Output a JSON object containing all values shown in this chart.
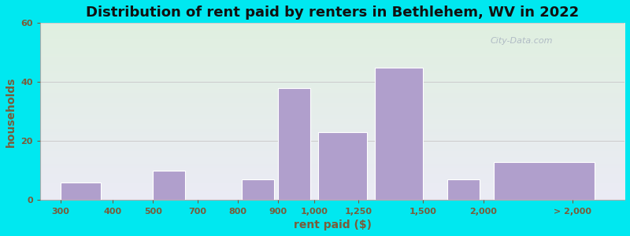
{
  "title": "Distribution of rent paid by renters in Bethlehem, WV in 2022",
  "xlabel": "rent paid ($)",
  "ylabel": "households",
  "bar_color": "#b09fcc",
  "bar_edgecolor": "#ffffff",
  "ylim": [
    0,
    60
  ],
  "yticks": [
    0,
    20,
    40,
    60
  ],
  "categories": [
    "300",
    "400",
    "500",
    "700",
    "800",
    "9001,000",
    "1,250",
    "1,500",
    "2,000",
    "> 2,000"
  ],
  "bar_positions": [
    1.0,
    2.2,
    3.2,
    4.4,
    5.4,
    6.3,
    7.5,
    8.9,
    10.5,
    12.5
  ],
  "bar_widths": [
    1.0,
    0.8,
    0.8,
    0.8,
    0.8,
    0.8,
    1.2,
    1.2,
    0.8,
    2.5
  ],
  "bar_heights": [
    6,
    0,
    10,
    0,
    7,
    38,
    23,
    45,
    7,
    13
  ],
  "tick_labels": [
    "300",
    "400",
    "500",
    "700",
    "800",
    "900",
    "1,000",
    "1,250",
    "1,500",
    "2,000",
    "> 2,000"
  ],
  "outer_bg": "#00e8f0",
  "grad_top_color": "#e0f0e0",
  "grad_bottom_color": "#ebebf5",
  "title_fontsize": 13,
  "axis_label_fontsize": 10,
  "tick_fontsize": 8,
  "tick_color": "#7a5c3a",
  "title_color": "#111111",
  "watermark_text": "City-Data.com"
}
